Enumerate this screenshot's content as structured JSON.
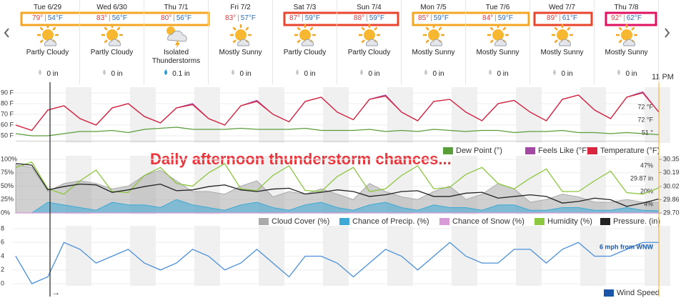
{
  "forecast": {
    "separator": "|",
    "time_label": "11 PM",
    "now_marker": "→",
    "annotation": "Daily afternoon thunderstorm chances...",
    "days": [
      {
        "day": "Tue 6/29",
        "high": "79°",
        "low": "54°F",
        "condition": "Partly Cloudy",
        "precip": "0 in"
      },
      {
        "day": "Wed 6/30",
        "high": "83°",
        "low": "56°F",
        "condition": "Partly Cloudy",
        "precip": "0 in"
      },
      {
        "day": "Thu 7/1",
        "high": "80°",
        "low": "56°F",
        "condition": "Isolated Thunderstorms",
        "precip": "0.1 in"
      },
      {
        "day": "Fri 7/2",
        "high": "83°",
        "low": "57°F",
        "condition": "Mostly Sunny",
        "precip": "0 in"
      },
      {
        "day": "Sat 7/3",
        "high": "87°",
        "low": "59°F",
        "condition": "Partly Cloudy",
        "precip": "0 in"
      },
      {
        "day": "Sun 7/4",
        "high": "88°",
        "low": "59°F",
        "condition": "Partly Cloudy",
        "precip": "0 in"
      },
      {
        "day": "Mon 7/5",
        "high": "85°",
        "low": "59°F",
        "condition": "Mostly Sunny",
        "precip": "0 in"
      },
      {
        "day": "Tue 7/6",
        "high": "84°",
        "low": "59°F",
        "condition": "Mostly Sunny",
        "precip": "0 in"
      },
      {
        "day": "Wed 7/7",
        "high": "89°",
        "low": "61°F",
        "condition": "Mostly Sunny",
        "precip": "0 in"
      },
      {
        "day": "Thu 7/8",
        "high": "92°",
        "low": "62°F",
        "condition": "Mostly Sunny",
        "precip": "0 in"
      }
    ]
  },
  "chart_data": [
    {
      "type": "line",
      "ylim": [
        45,
        95
      ],
      "yticks": [
        {
          "value": 50,
          "label": "50 F"
        },
        {
          "value": 60,
          "label": "60 F"
        },
        {
          "value": 70,
          "label": "70 F"
        },
        {
          "value": 80,
          "label": "80 F"
        },
        {
          "value": 90,
          "label": "90 F"
        }
      ],
      "series": [
        {
          "name": "Dew Point (°)",
          "color": "#5a9e3a",
          "type": "line",
          "end_label": "51 °",
          "values": [
            52,
            50,
            50,
            52,
            54,
            54,
            55,
            53,
            56,
            57,
            58,
            56,
            56,
            56,
            57,
            56,
            56,
            56,
            57,
            55,
            55,
            55,
            56,
            54,
            55,
            54,
            56,
            55,
            54,
            55,
            55,
            53,
            54,
            54,
            55,
            53,
            53,
            52,
            53,
            52,
            51
          ]
        },
        {
          "name": "Feels Like (°F)",
          "color": "#a349a4",
          "type": "line",
          "end_label": "72 °F",
          "values": [
            60,
            55,
            74,
            78,
            66,
            60,
            76,
            80,
            68,
            62,
            76,
            80,
            66,
            60,
            78,
            83,
            70,
            63,
            82,
            86,
            72,
            65,
            84,
            88,
            72,
            64,
            82,
            84,
            72,
            64,
            80,
            83,
            72,
            64,
            84,
            88,
            74,
            66,
            86,
            91,
            72
          ]
        },
        {
          "name": "Temperature (°F)",
          "color": "#d7263d",
          "type": "line",
          "end_label": "72 °F",
          "values": [
            60,
            55,
            74,
            78,
            66,
            60,
            76,
            80,
            68,
            62,
            76,
            79,
            66,
            60,
            78,
            82,
            70,
            63,
            82,
            86,
            72,
            65,
            84,
            87,
            72,
            64,
            82,
            84,
            72,
            64,
            80,
            83,
            72,
            64,
            84,
            88,
            74,
            66,
            86,
            90,
            72
          ]
        }
      ]
    },
    {
      "type": "line",
      "ylim": [
        0,
        100
      ],
      "yticks": [
        {
          "value": 0,
          "label": "0%"
        },
        {
          "value": 25,
          "label": "25%"
        },
        {
          "value": 50,
          "label": "50%"
        },
        {
          "value": 75,
          "label": "75%"
        },
        {
          "value": 100,
          "label": "100%"
        }
      ],
      "y2lim": [
        29.7,
        30.35
      ],
      "y2ticks": [
        {
          "value": 29.7,
          "label": "29.70"
        },
        {
          "value": 29.86,
          "label": "29.86"
        },
        {
          "value": 30.02,
          "label": "30.02"
        },
        {
          "value": 30.19,
          "label": "30.19"
        },
        {
          "value": 30.35,
          "label": "30.35"
        }
      ],
      "series": [
        {
          "name": "Cloud Cover (%)",
          "color": "#aaaaaa",
          "type": "area",
          "end_label": "20%",
          "values": [
            90,
            85,
            40,
            55,
            60,
            55,
            45,
            50,
            70,
            80,
            60,
            40,
            40,
            35,
            50,
            60,
            30,
            40,
            35,
            45,
            35,
            25,
            55,
            40,
            30,
            25,
            40,
            50,
            25,
            35,
            55,
            45,
            20,
            25,
            35,
            30,
            20,
            20,
            25,
            20,
            20
          ]
        },
        {
          "name": "Chance of Precip. (%)",
          "color": "#3fa9d5",
          "type": "area",
          "end_label": "4%",
          "values": [
            0,
            0,
            20,
            15,
            10,
            5,
            20,
            15,
            15,
            10,
            25,
            15,
            10,
            5,
            15,
            20,
            10,
            5,
            15,
            20,
            10,
            5,
            15,
            20,
            10,
            5,
            15,
            10,
            10,
            5,
            15,
            15,
            5,
            5,
            10,
            10,
            5,
            5,
            10,
            5,
            4
          ]
        },
        {
          "name": "Chance of Snow (%)",
          "color": "#d89bd8",
          "type": "line",
          "values": [
            0,
            0,
            0,
            0,
            0,
            0,
            0,
            0,
            0,
            0,
            0,
            0,
            0,
            0,
            0,
            0,
            0,
            0,
            0,
            0,
            0,
            0,
            0,
            0,
            0,
            0,
            0,
            0,
            0,
            0,
            0,
            0,
            0,
            0,
            0,
            0,
            0,
            0,
            0,
            0,
            0
          ]
        },
        {
          "name": "Humidity (%)",
          "color": "#8dc63f",
          "type": "line",
          "end_label": "47%",
          "values": [
            85,
            95,
            45,
            35,
            60,
            80,
            40,
            38,
            70,
            85,
            55,
            50,
            75,
            92,
            45,
            42,
            70,
            88,
            42,
            40,
            68,
            85,
            40,
            45,
            70,
            88,
            45,
            48,
            72,
            85,
            55,
            45,
            65,
            82,
            40,
            40,
            60,
            78,
            38,
            35,
            47
          ]
        },
        {
          "name": "Pressure. (in)",
          "color": "#222222",
          "type": "line",
          "axis": "y2",
          "end_label": "29.87 in",
          "values": [
            30.3,
            30.28,
            29.98,
            30.02,
            30.05,
            30.04,
            29.95,
            29.98,
            30.02,
            30.05,
            29.97,
            29.98,
            30.02,
            30.04,
            29.98,
            29.96,
            29.99,
            30.0,
            29.93,
            29.95,
            29.98,
            29.96,
            29.9,
            29.92,
            29.96,
            29.97,
            29.9,
            29.9,
            29.94,
            29.95,
            29.88,
            29.9,
            29.92,
            29.9,
            29.82,
            29.84,
            29.88,
            29.86,
            29.78,
            29.82,
            29.87
          ]
        }
      ]
    },
    {
      "type": "line",
      "ylim": [
        0,
        8
      ],
      "yticks": [
        0,
        2,
        4,
        6,
        8
      ],
      "series": [
        {
          "name": "Wind Speed",
          "color": "#4a90d9",
          "legend_color": "#1a56a8",
          "type": "line",
          "end_label": "6 mph from WNW",
          "values": [
            4,
            0,
            1,
            6,
            5,
            3,
            4,
            5,
            3,
            2,
            3,
            5,
            4,
            2,
            3,
            5,
            3,
            1,
            4,
            4,
            3,
            1,
            3,
            5,
            4,
            2,
            4,
            6,
            4,
            3,
            3,
            5,
            5,
            3,
            5,
            6,
            4,
            4,
            5,
            6,
            6
          ]
        }
      ]
    }
  ]
}
